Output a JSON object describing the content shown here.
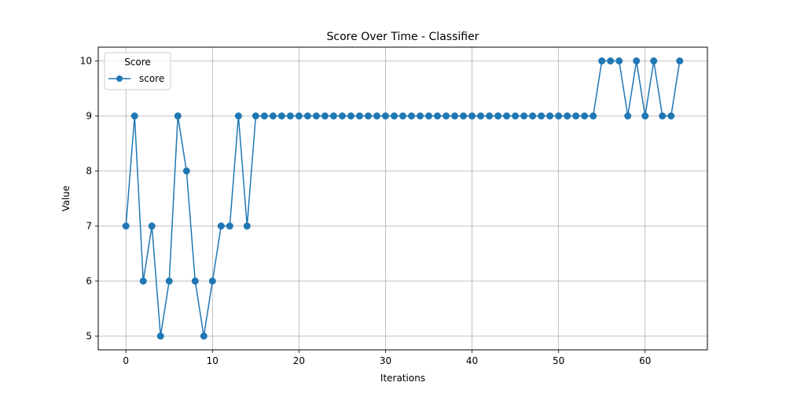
{
  "chart_data": {
    "type": "line",
    "title": "Score Over Time - Classifier",
    "xlabel": "Iterations",
    "ylabel": "Value",
    "xlim": [
      -3.2,
      67.2
    ],
    "ylim": [
      4.75,
      10.25
    ],
    "xticks": [
      0,
      10,
      20,
      30,
      40,
      50,
      60
    ],
    "yticks": [
      5,
      6,
      7,
      8,
      9,
      10
    ],
    "grid": true,
    "legend": {
      "title": "Score",
      "position": "top-left"
    },
    "series": [
      {
        "name": "score",
        "color": "#1f77b4",
        "marker": "circle",
        "x": [
          0,
          1,
          2,
          3,
          4,
          5,
          6,
          7,
          8,
          9,
          10,
          11,
          12,
          13,
          14,
          15,
          16,
          17,
          18,
          19,
          20,
          21,
          22,
          23,
          24,
          25,
          26,
          27,
          28,
          29,
          30,
          31,
          32,
          33,
          34,
          35,
          36,
          37,
          38,
          39,
          40,
          41,
          42,
          43,
          44,
          45,
          46,
          47,
          48,
          49,
          50,
          51,
          52,
          53,
          54,
          55,
          56,
          57,
          58,
          59,
          60,
          61,
          62,
          63,
          64
        ],
        "values": [
          7,
          9,
          6,
          7,
          5,
          6,
          9,
          8,
          6,
          5,
          6,
          7,
          7,
          9,
          7,
          9,
          9,
          9,
          9,
          9,
          9,
          9,
          9,
          9,
          9,
          9,
          9,
          9,
          9,
          9,
          9,
          9,
          9,
          9,
          9,
          9,
          9,
          9,
          9,
          9,
          9,
          9,
          9,
          9,
          9,
          9,
          9,
          9,
          9,
          9,
          9,
          9,
          9,
          9,
          9,
          10,
          10,
          10,
          9,
          10,
          9,
          10,
          9,
          9,
          10
        ]
      }
    ]
  }
}
